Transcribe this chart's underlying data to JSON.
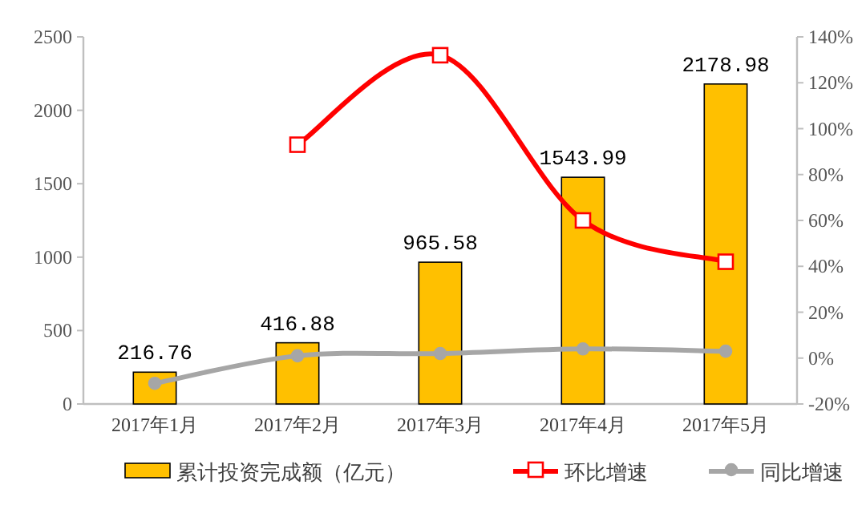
{
  "chart_data": {
    "type": "bar",
    "categories": [
      "2017年1月",
      "2017年2月",
      "2017年3月",
      "2017年4月",
      "2017年5月"
    ],
    "series": [
      {
        "name": "累计投资完成额（亿元）",
        "color": "#ffc000",
        "values": [
          216.76,
          416.88,
          965.58,
          1543.99,
          2178.98
        ],
        "value_labels": [
          "216.76",
          "416.88",
          "965.58",
          "1543.99",
          "2178.98"
        ]
      },
      {
        "name": "环比增速",
        "type": "line",
        "axis": "y2",
        "color": "#ff0000",
        "marker": "square",
        "values": [
          null,
          93,
          132,
          60,
          42
        ]
      },
      {
        "name": "同比增速",
        "type": "line",
        "axis": "y2",
        "color": "#a6a6a6",
        "marker": "circle",
        "values": [
          -11,
          1,
          2,
          4,
          3
        ]
      }
    ],
    "ylim": [
      0,
      2500
    ],
    "yticks": [
      0,
      500,
      1000,
      1500,
      2000,
      2500
    ],
    "y2lim": [
      -20,
      140
    ],
    "y2ticks": [
      {
        "value": -20,
        "label": "-20%"
      },
      {
        "value": 0,
        "label": "0%"
      },
      {
        "value": 20,
        "label": "20%"
      },
      {
        "value": 40,
        "label": "40%"
      },
      {
        "value": 60,
        "label": "60%"
      },
      {
        "value": 80,
        "label": "80%"
      },
      {
        "value": 100,
        "label": "100%"
      },
      {
        "value": 120,
        "label": "120%"
      },
      {
        "value": 140,
        "label": "140%"
      }
    ],
    "legend": "bottom"
  }
}
